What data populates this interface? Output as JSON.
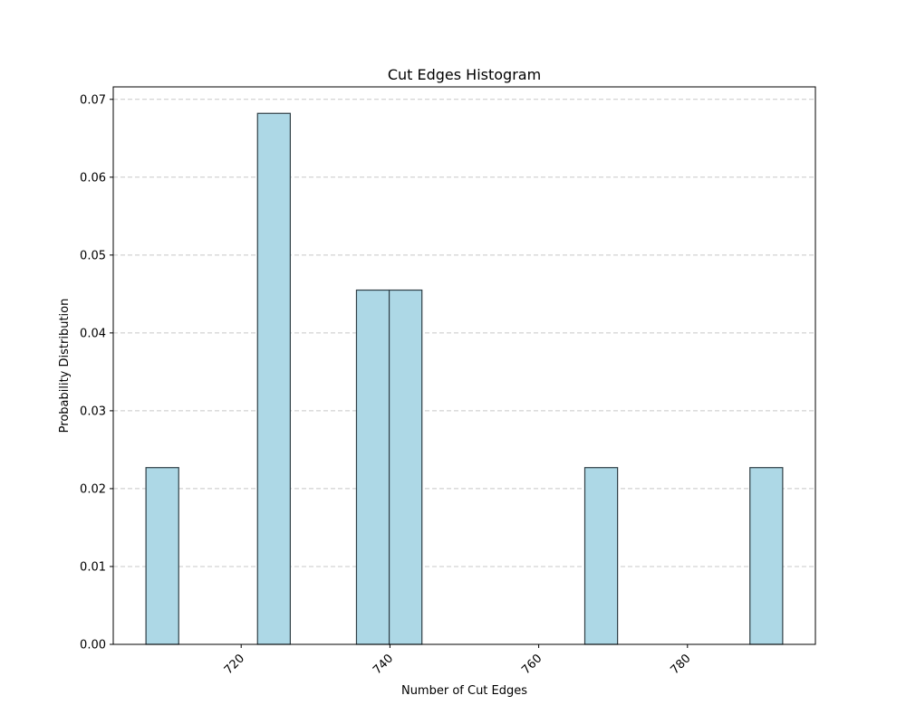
{
  "colors": {
    "bar_fill": "#add8e6",
    "bar_edge": "#2f3f46",
    "grid": "#c8c8c8",
    "axis": "#000000",
    "background": "#ffffff"
  },
  "chart_data": {
    "type": "bar",
    "title": "Cut Edges Histogram",
    "xlabel": "Number of Cut Edges",
    "ylabel": "Probability Distribution",
    "xlim": [
      702.8,
      797.2
    ],
    "ylim": [
      0,
      0.0716
    ],
    "xticks": [
      720,
      740,
      760,
      780
    ],
    "xtick_labels": [
      "720",
      "740",
      "760",
      "780"
    ],
    "yticks": [
      0,
      0.01,
      0.02,
      0.03,
      0.04,
      0.05,
      0.06,
      0.07
    ],
    "ytick_labels": [
      "0.00",
      "0.01",
      "0.02",
      "0.03",
      "0.04",
      "0.05",
      "0.06",
      "0.07"
    ],
    "grid": "y-dashed",
    "bins": [
      {
        "x_start": 707.2,
        "x_end": 711.6,
        "value": 0.0227
      },
      {
        "x_start": 722.2,
        "x_end": 726.6,
        "value": 0.0682
      },
      {
        "x_start": 735.5,
        "x_end": 739.9,
        "value": 0.0455
      },
      {
        "x_start": 739.9,
        "x_end": 744.3,
        "value": 0.0455
      },
      {
        "x_start": 766.2,
        "x_end": 770.6,
        "value": 0.0227
      },
      {
        "x_start": 788.4,
        "x_end": 792.8,
        "value": 0.0227
      }
    ]
  }
}
